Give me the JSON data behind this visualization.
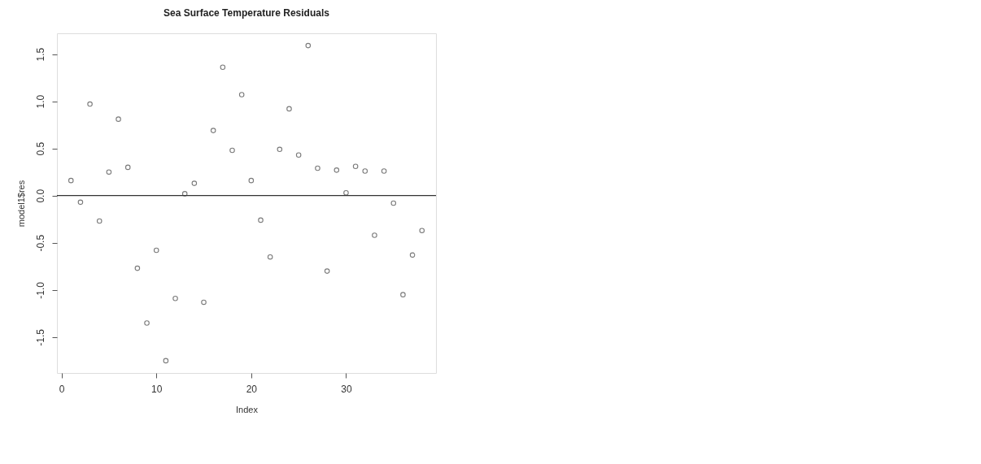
{
  "chart_data": {
    "type": "scatter",
    "title": "Sea Surface Temperature Residuals",
    "xlabel": "Index",
    "ylabel": "model1$res",
    "x": [
      1,
      2,
      3,
      4,
      5,
      6,
      7,
      8,
      9,
      10,
      11,
      12,
      13,
      14,
      15,
      16,
      17,
      18,
      19,
      20,
      21,
      22,
      23,
      24,
      25,
      26,
      27,
      28,
      29,
      30,
      31,
      32,
      33,
      34,
      35,
      36,
      37,
      38
    ],
    "series": [
      {
        "color": "#7a7a7a",
        "values": [
          0.16,
          -0.07,
          0.97,
          -0.27,
          0.25,
          0.81,
          0.3,
          -0.77,
          -1.35,
          -0.58,
          -1.75,
          -1.09,
          0.02,
          0.13,
          -1.13,
          0.69,
          1.36,
          0.48,
          1.07,
          0.16,
          -0.26,
          -0.65,
          0.49,
          0.92,
          0.43,
          1.59,
          0.29,
          -0.8,
          0.27,
          0.03,
          0.31,
          0.26,
          -0.42,
          0.26,
          -0.08,
          -1.05,
          -0.63,
          -0.37
        ]
      }
    ],
    "xlim": [
      -0.48,
      39.48
    ],
    "ylim": [
      -1.88,
      1.72
    ],
    "xticks": [
      0,
      10,
      20,
      30
    ],
    "yticks": [
      {
        "value": -1.5,
        "label": "-1.5"
      },
      {
        "value": -1,
        "label": "-1.0"
      },
      {
        "value": -0.5,
        "label": "-0.5"
      },
      {
        "value": 0,
        "label": "0.0"
      },
      {
        "value": 0.5,
        "label": "0.5"
      },
      {
        "value": 1,
        "label": "1.0"
      },
      {
        "value": 1.5,
        "label": "1.5"
      }
    ],
    "ref_lines": [
      {
        "axis": "y",
        "value": 0,
        "color": "#333333"
      }
    ],
    "marker": "circle",
    "grid": false
  }
}
